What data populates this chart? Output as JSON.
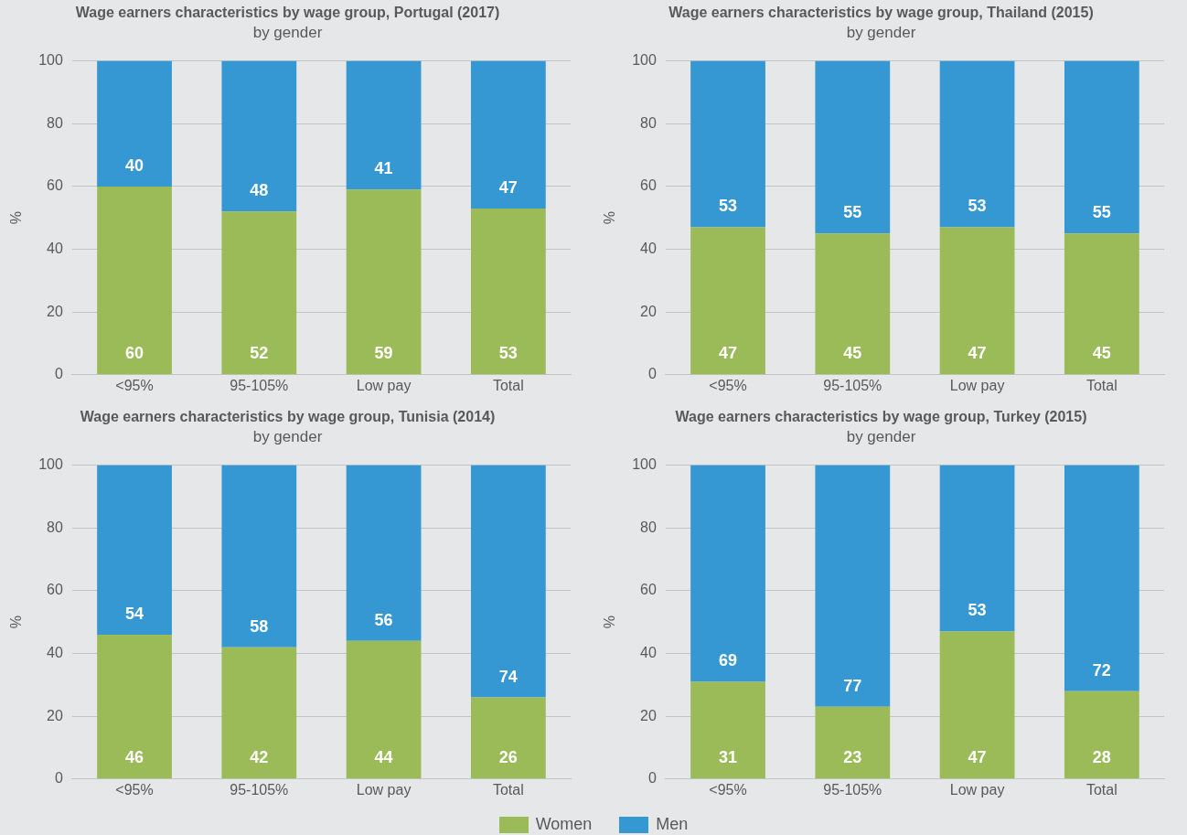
{
  "chart_data": [
    {
      "type": "bar",
      "title": "Wage earners characteristics by wage group, Portugal (2017)",
      "subtitle": "by gender",
      "ylabel": "%",
      "categories": [
        "<95%",
        "95-105%",
        "Low pay",
        "Total"
      ],
      "stacked": true,
      "ylim": [
        0,
        100
      ],
      "yticks": [
        0,
        20,
        40,
        60,
        80,
        100
      ],
      "grid": "y",
      "data_labels": true,
      "legend": "bottom",
      "series": [
        {
          "name": "Women",
          "color": "#9bbb59",
          "values": [
            60,
            52,
            59,
            53
          ]
        },
        {
          "name": "Men",
          "color": "#3698d2",
          "values": [
            40,
            48,
            41,
            47
          ]
        }
      ]
    },
    {
      "type": "bar",
      "title": "Wage earners characteristics by wage group, Thailand (2015)",
      "subtitle": "by gender",
      "ylabel": "%",
      "categories": [
        "<95%",
        "95-105%",
        "Low pay",
        "Total"
      ],
      "stacked": true,
      "ylim": [
        0,
        100
      ],
      "yticks": [
        0,
        20,
        40,
        60,
        80,
        100
      ],
      "grid": "y",
      "data_labels": true,
      "legend": "bottom",
      "series": [
        {
          "name": "Women",
          "color": "#9bbb59",
          "values": [
            47,
            45,
            47,
            45
          ]
        },
        {
          "name": "Men",
          "color": "#3698d2",
          "values": [
            53,
            55,
            53,
            55
          ]
        }
      ]
    },
    {
      "type": "bar",
      "title": "Wage earners characteristics by wage group, Tunisia (2014)",
      "subtitle": "by gender",
      "ylabel": "%",
      "categories": [
        "<95%",
        "95-105%",
        "Low pay",
        "Total"
      ],
      "stacked": true,
      "ylim": [
        0,
        100
      ],
      "yticks": [
        0,
        20,
        40,
        60,
        80,
        100
      ],
      "grid": "y",
      "data_labels": true,
      "legend": "bottom",
      "series": [
        {
          "name": "Women",
          "color": "#9bbb59",
          "values": [
            46,
            42,
            44,
            26
          ]
        },
        {
          "name": "Men",
          "color": "#3698d2",
          "values": [
            54,
            58,
            56,
            74
          ]
        }
      ]
    },
    {
      "type": "bar",
      "title": "Wage earners characteristics by wage group, Turkey (2015)",
      "subtitle": "by gender",
      "ylabel": "%",
      "categories": [
        "<95%",
        "95-105%",
        "Low pay",
        "Total"
      ],
      "stacked": true,
      "ylim": [
        0,
        100
      ],
      "yticks": [
        0,
        20,
        40,
        60,
        80,
        100
      ],
      "grid": "y",
      "data_labels": true,
      "legend": "bottom",
      "series": [
        {
          "name": "Women",
          "color": "#9bbb59",
          "values": [
            31,
            23,
            47,
            28
          ]
        },
        {
          "name": "Men",
          "color": "#3698d2",
          "values": [
            69,
            77,
            53,
            72
          ]
        }
      ]
    }
  ]
}
